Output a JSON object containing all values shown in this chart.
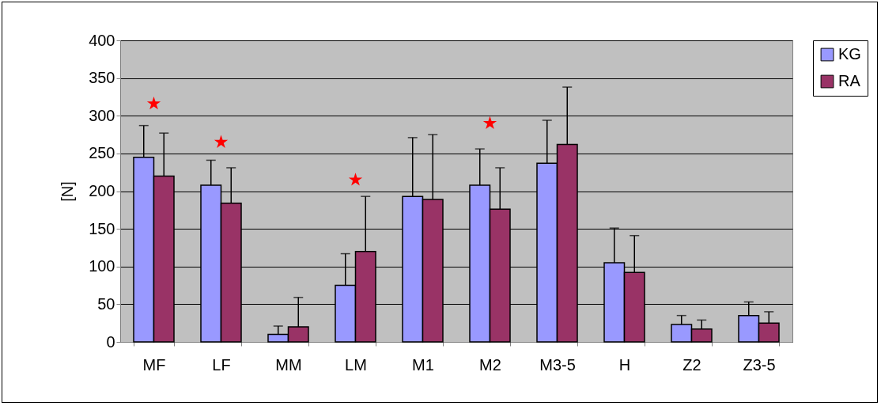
{
  "chart_data": {
    "type": "bar",
    "ylabel": "[N]",
    "categories": [
      "MF",
      "LF",
      "MM",
      "LM",
      "M1",
      "M2",
      "M3-5",
      "H",
      "Z2",
      "Z3-5"
    ],
    "series": [
      {
        "name": "KG",
        "color": "#9999ff",
        "values": [
          245,
          208,
          10,
          75,
          193,
          208,
          237,
          105,
          23,
          35
        ],
        "errors": [
          [
            245,
            287
          ],
          [
            208,
            241
          ],
          [
            10,
            21
          ],
          [
            75,
            117
          ],
          [
            193,
            271
          ],
          [
            208,
            256
          ],
          [
            237,
            294
          ],
          [
            105,
            151
          ],
          [
            23,
            35
          ],
          [
            35,
            53
          ]
        ]
      },
      {
        "name": "RA",
        "color": "#993366",
        "values": [
          220,
          184,
          20,
          120,
          189,
          176,
          262,
          92,
          17,
          25
        ],
        "errors": [
          [
            220,
            277
          ],
          [
            184,
            231
          ],
          [
            20,
            59
          ],
          [
            120,
            193
          ],
          [
            189,
            275
          ],
          [
            176,
            231
          ],
          [
            262,
            338
          ],
          [
            92,
            141
          ],
          [
            17,
            29
          ],
          [
            25,
            40
          ]
        ]
      },
      {
        "type": "scatter",
        "marker": "star",
        "color": "#ff0000",
        "x": [
          "MF",
          "LF",
          "LM",
          "M2"
        ],
        "values": [
          316,
          265,
          215,
          290
        ]
      }
    ],
    "ylim": [
      0,
      400
    ],
    "yticks": [
      0,
      50,
      100,
      150,
      200,
      250,
      300,
      350,
      400
    ],
    "grid": "y",
    "legend": "right"
  }
}
